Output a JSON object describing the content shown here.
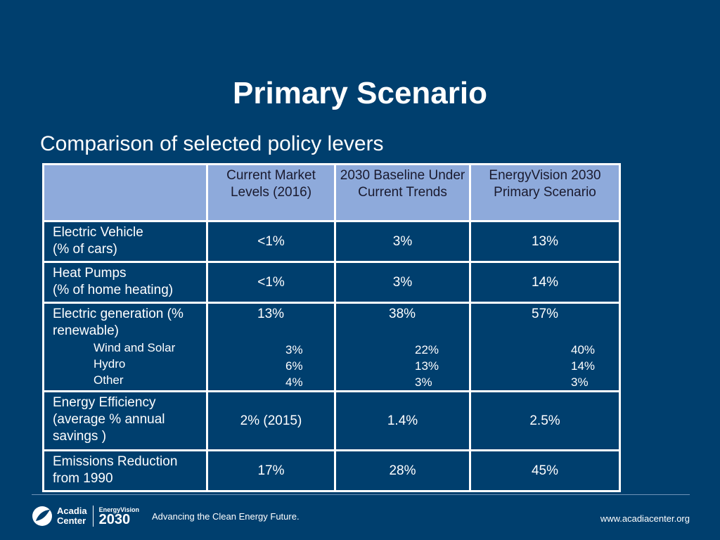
{
  "slide": {
    "title": "Primary Scenario",
    "subtitle": "Comparison of selected policy levers"
  },
  "table": {
    "headers": [
      "",
      "Current Market Levels (2016)",
      "2030 Baseline Under Current Trends",
      "EnergyVision 2030 Primary Scenario"
    ],
    "rows": {
      "ev": {
        "label_line1": "Electric Vehicle",
        "label_line2": "(% of cars)",
        "v1": "<1%",
        "v2": "3%",
        "v3": "13%"
      },
      "hp": {
        "label_line1": "Heat Pumps",
        "label_line2": "(% of home heating)",
        "v1": "<1%",
        "v2": "3%",
        "v3": "14%"
      },
      "eg": {
        "label_line1": "Electric generation (%",
        "label_line2": "renewable)",
        "v1": "13%",
        "v2": "38%",
        "v3": "57%",
        "sub_labels": [
          "Wind and Solar",
          "Hydro",
          "Other"
        ],
        "sub_v1": [
          "3%",
          "6%",
          "4%"
        ],
        "sub_v2": [
          "22%",
          "13%",
          "3%"
        ],
        "sub_v3": [
          "40%",
          "14%",
          "3%"
        ]
      },
      "ee": {
        "label_line1": "Energy Efficiency",
        "label_line2": "(average % annual",
        "label_line3": "savings )",
        "v1": "2% (2015)",
        "v2": "1.4%",
        "v3": "2.5%"
      },
      "er": {
        "label_line1": "Emissions Reduction",
        "label_line2": "from 1990",
        "v1": "17%",
        "v2": "28%",
        "v3": "45%"
      }
    }
  },
  "footer": {
    "org_line1": "Acadia",
    "org_line2": "Center",
    "ev_top": "EnergyVision",
    "ev_num": "2030",
    "tagline": "Advancing the Clean Energy Future.",
    "url": "www.acadiacenter.org"
  }
}
